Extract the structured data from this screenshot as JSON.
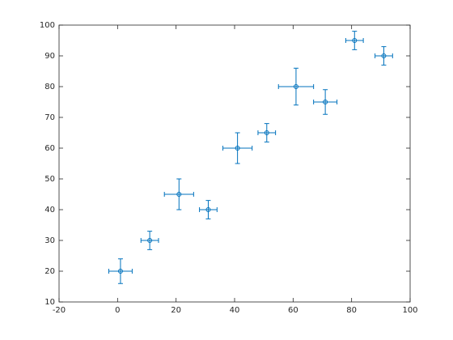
{
  "chart_data": {
    "type": "errorbar-scatter",
    "x": [
      1,
      11,
      21,
      31,
      41,
      51,
      61,
      71,
      81,
      91
    ],
    "values": [
      20,
      30,
      45,
      40,
      60,
      65,
      80,
      75,
      95,
      90
    ],
    "xerr": [
      4,
      3,
      5,
      3,
      5,
      3,
      6,
      4,
      3,
      3
    ],
    "yerr": [
      4,
      3,
      5,
      3,
      5,
      3,
      6,
      4,
      3,
      3
    ],
    "color": "#0072bd",
    "xlim": [
      -20,
      100
    ],
    "xticks": [
      -20,
      0,
      20,
      40,
      60,
      80,
      100
    ],
    "ylim": [
      10,
      100
    ],
    "yticks": [
      10,
      20,
      30,
      40,
      50,
      60,
      70,
      80,
      90,
      100
    ],
    "grid": false
  }
}
